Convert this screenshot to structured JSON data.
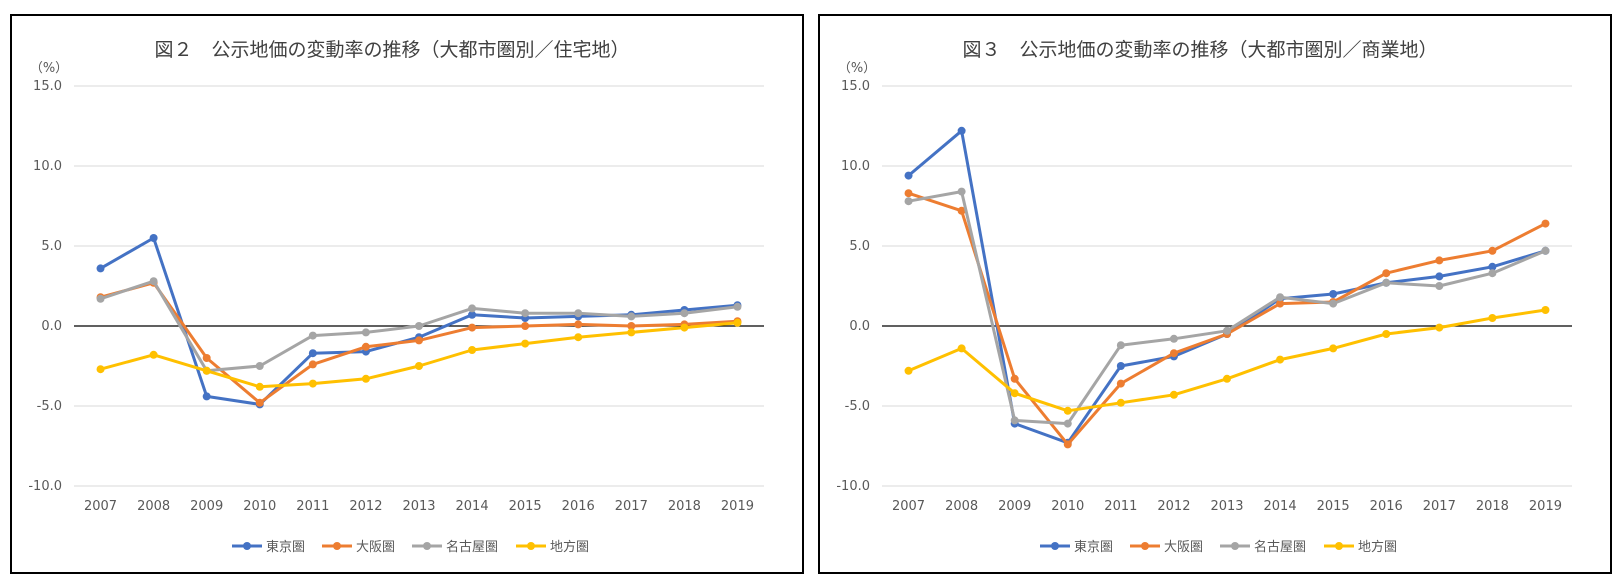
{
  "chart_data": [
    {
      "type": "line",
      "title": "図２　公示地価の変動率の推移（大都市圏別／住宅地）",
      "unit_label": "（%）",
      "ylim": [
        -10,
        15
      ],
      "yticks": [
        "15.0",
        "10.0",
        "5.0",
        "0.0",
        "-5.0",
        "-10.0"
      ],
      "ytick_values": [
        15,
        10,
        5,
        0,
        -5,
        -10
      ],
      "categories": [
        "2007",
        "2008",
        "2009",
        "2010",
        "2011",
        "2012",
        "2013",
        "2014",
        "2015",
        "2016",
        "2017",
        "2018",
        "2019"
      ],
      "series": [
        {
          "name": "東京圏",
          "color": "#4472C4",
          "values": [
            3.6,
            5.5,
            -4.4,
            -4.9,
            -1.7,
            -1.6,
            -0.7,
            0.7,
            0.5,
            0.6,
            0.7,
            1.0,
            1.3
          ]
        },
        {
          "name": "大阪圏",
          "color": "#ED7D31",
          "values": [
            1.8,
            2.7,
            -2.0,
            -4.8,
            -2.4,
            -1.3,
            -0.9,
            -0.1,
            0.0,
            0.1,
            0.0,
            0.1,
            0.3
          ]
        },
        {
          "name": "名古屋圏",
          "color": "#A5A5A5",
          "values": [
            1.7,
            2.8,
            -2.8,
            -2.5,
            -0.6,
            -0.4,
            0.0,
            1.1,
            0.8,
            0.8,
            0.6,
            0.8,
            1.2
          ]
        },
        {
          "name": "地方圏",
          "color": "#FFC000",
          "values": [
            -2.7,
            -1.8,
            -2.8,
            -3.8,
            -3.6,
            -3.3,
            -2.5,
            -1.5,
            -1.1,
            -0.7,
            -0.4,
            -0.1,
            0.2
          ]
        }
      ]
    },
    {
      "type": "line",
      "title": "図３　公示地価の変動率の推移（大都市圏別／商業地）",
      "unit_label": "（%）",
      "ylim": [
        -10,
        15
      ],
      "yticks": [
        "15.0",
        "10.0",
        "5.0",
        "0.0",
        "-5.0",
        "-10.0"
      ],
      "ytick_values": [
        15,
        10,
        5,
        0,
        -5,
        -10
      ],
      "categories": [
        "2007",
        "2008",
        "2009",
        "2010",
        "2011",
        "2012",
        "2013",
        "2014",
        "2015",
        "2016",
        "2017",
        "2018",
        "2019"
      ],
      "series": [
        {
          "name": "東京圏",
          "color": "#4472C4",
          "values": [
            9.4,
            12.2,
            -6.1,
            -7.3,
            -2.5,
            -1.9,
            -0.5,
            1.7,
            2.0,
            2.7,
            3.1,
            3.7,
            4.7
          ]
        },
        {
          "name": "大阪圏",
          "color": "#ED7D31",
          "values": [
            8.3,
            7.2,
            -3.3,
            -7.4,
            -3.6,
            -1.7,
            -0.5,
            1.4,
            1.5,
            3.3,
            4.1,
            4.7,
            6.4
          ]
        },
        {
          "name": "名古屋圏",
          "color": "#A5A5A5",
          "values": [
            7.8,
            8.4,
            -5.9,
            -6.1,
            -1.2,
            -0.8,
            -0.3,
            1.8,
            1.4,
            2.7,
            2.5,
            3.3,
            4.7
          ]
        },
        {
          "name": "地方圏",
          "color": "#FFC000",
          "values": [
            -2.8,
            -1.4,
            -4.2,
            -5.3,
            -4.8,
            -4.3,
            -3.3,
            -2.1,
            -1.4,
            -0.5,
            -0.1,
            0.5,
            1.0
          ]
        }
      ]
    }
  ]
}
